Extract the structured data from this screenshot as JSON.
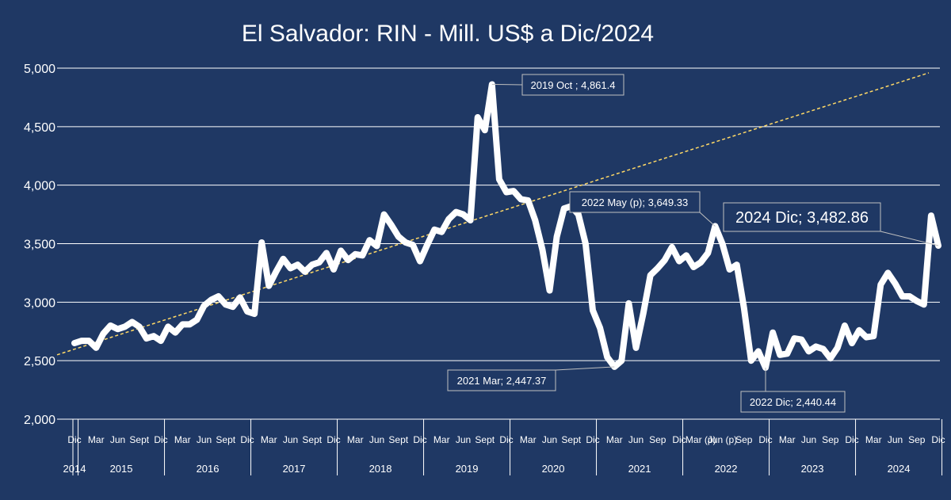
{
  "chart_data": {
    "type": "line",
    "title": "El Salvador: RIN - Mill. US$ a Dic/2024",
    "xlabel": "",
    "ylabel": "",
    "ylim": [
      2000,
      5000
    ],
    "yticks": [
      "2,000",
      "2,500",
      "3,000",
      "3,500",
      "4,000",
      "4,500",
      "5,000"
    ],
    "ytick_values": [
      2000,
      2500,
      3000,
      3500,
      4000,
      4500,
      5000
    ],
    "grid": true,
    "legend": "none",
    "colors": {
      "background": "#1f3864",
      "line": "#ffffff",
      "trend": "#ffd966",
      "grid": "#ffffff"
    },
    "years": [
      {
        "label": "2014",
        "months": [
          {
            "m": 12,
            "label": "Dic"
          }
        ]
      },
      {
        "label": "2015",
        "months": [
          {
            "m": 3,
            "label": "Mar"
          },
          {
            "m": 6,
            "label": "Jun"
          },
          {
            "m": 9,
            "label": "Sept"
          },
          {
            "m": 12,
            "label": "Dic"
          }
        ]
      },
      {
        "label": "2016",
        "months": [
          {
            "m": 3,
            "label": "Mar"
          },
          {
            "m": 6,
            "label": "Jun"
          },
          {
            "m": 9,
            "label": "Sept"
          },
          {
            "m": 12,
            "label": "Dic"
          }
        ]
      },
      {
        "label": "2017",
        "months": [
          {
            "m": 3,
            "label": "Mar"
          },
          {
            "m": 6,
            "label": "Jun"
          },
          {
            "m": 9,
            "label": "Sept"
          },
          {
            "m": 12,
            "label": "Dic"
          }
        ]
      },
      {
        "label": "2018",
        "months": [
          {
            "m": 3,
            "label": "Mar"
          },
          {
            "m": 6,
            "label": "Jun"
          },
          {
            "m": 9,
            "label": "Sept"
          },
          {
            "m": 12,
            "label": "Dic"
          }
        ]
      },
      {
        "label": "2019",
        "months": [
          {
            "m": 3,
            "label": "Mar"
          },
          {
            "m": 6,
            "label": "Jun"
          },
          {
            "m": 9,
            "label": "Sept"
          },
          {
            "m": 12,
            "label": "Dic"
          }
        ]
      },
      {
        "label": "2020",
        "months": [
          {
            "m": 3,
            "label": "Mar"
          },
          {
            "m": 6,
            "label": "Jun"
          },
          {
            "m": 9,
            "label": "Sept"
          },
          {
            "m": 12,
            "label": "Dic"
          }
        ]
      },
      {
        "label": "2021",
        "months": [
          {
            "m": 3,
            "label": "Mar"
          },
          {
            "m": 6,
            "label": "Jun"
          },
          {
            "m": 9,
            "label": "Sep"
          },
          {
            "m": 12,
            "label": "Dic"
          }
        ]
      },
      {
        "label": "2022",
        "months": [
          {
            "m": 3,
            "label": "Mar (p)"
          },
          {
            "m": 6,
            "label": "Jun (p)"
          },
          {
            "m": 9,
            "label": "Sep"
          },
          {
            "m": 12,
            "label": "Dic"
          }
        ]
      },
      {
        "label": "2023",
        "months": [
          {
            "m": 3,
            "label": "Mar"
          },
          {
            "m": 6,
            "label": "Jun"
          },
          {
            "m": 9,
            "label": "Sep"
          },
          {
            "m": 12,
            "label": "Dic"
          }
        ]
      },
      {
        "label": "2024",
        "months": [
          {
            "m": 3,
            "label": "Mar"
          },
          {
            "m": 6,
            "label": "Jun"
          },
          {
            "m": 9,
            "label": "Sep"
          },
          {
            "m": 12,
            "label": "Dic"
          }
        ]
      }
    ],
    "series": [
      {
        "start": "2014-12",
        "values": [
          2650,
          2670,
          2670,
          2610,
          2730,
          2800,
          2770,
          2790,
          2830,
          2790,
          2690,
          2710,
          2670,
          2790,
          2740,
          2810,
          2810,
          2850,
          2970,
          3020,
          3050,
          2980,
          2960,
          3040,
          2920,
          2900,
          3510,
          3140,
          3260,
          3370,
          3290,
          3320,
          3260,
          3320,
          3340,
          3420,
          3280,
          3440,
          3360,
          3410,
          3400,
          3530,
          3480,
          3750,
          3660,
          3560,
          3510,
          3490,
          3350,
          3490,
          3620,
          3600,
          3710,
          3770,
          3750,
          3700,
          4580,
          4470,
          4861.4,
          4050,
          3940,
          3950,
          3880,
          3870,
          3700,
          3450,
          3100,
          3560,
          3800,
          3820,
          3750,
          3500,
          2930,
          2780,
          2530,
          2447.37,
          2500,
          2990,
          2610,
          2900,
          3230,
          3290,
          3360,
          3470,
          3350,
          3400,
          3300,
          3340,
          3420,
          3649.33,
          3500,
          3280,
          3320,
          2950,
          2500,
          2580,
          2440.44,
          2740,
          2550,
          2560,
          2690,
          2680,
          2580,
          2620,
          2600,
          2520,
          2610,
          2800,
          2650,
          2760,
          2700,
          2710,
          3150,
          3250,
          3160,
          3050,
          3050,
          3010,
          2980,
          3740,
          3482.86
        ]
      }
    ],
    "trendline": {
      "from": 2550,
      "to": 4960
    },
    "annotations": [
      {
        "index": 58,
        "text": "2019 Oct ;  4,861.4"
      },
      {
        "index": 75,
        "text": "2021 Mar; 2,447.37"
      },
      {
        "index": 89,
        "text": "2022 May (p); 3,649.33"
      },
      {
        "index": 96,
        "text": "2022 Dic; 2,440.44"
      },
      {
        "index": 120,
        "text": "2024 Dic; 3,482.86"
      }
    ]
  }
}
